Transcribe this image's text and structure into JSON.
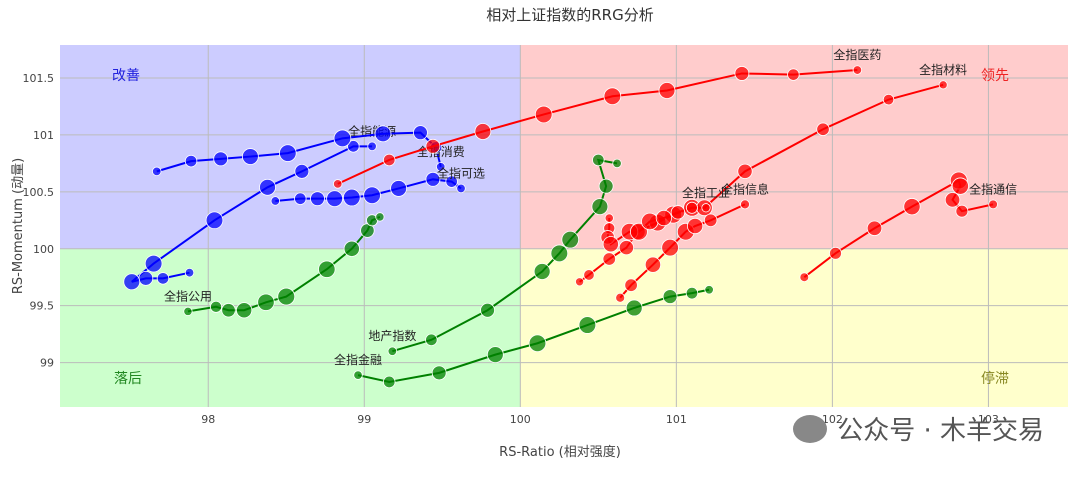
{
  "chart_data": {
    "type": "scatter",
    "title": "相对上证指数的RRG分析",
    "xlabel": "RS-Ratio (相对强度)",
    "ylabel": "RS-Momentum (动量)",
    "xlim": [
      97.05,
      103.51
    ],
    "ylim": [
      98.61,
      101.79
    ],
    "xticks": [
      98,
      99,
      100,
      101,
      102,
      103
    ],
    "yticks": [
      99,
      99.5,
      100,
      100.5,
      101,
      101.5
    ],
    "xtick_labels": [
      "98",
      "99",
      "100",
      "101",
      "102",
      "103"
    ],
    "ytick_labels": [
      "99",
      "99.5",
      "100",
      "100.5",
      "101",
      "101.5"
    ],
    "grid": true,
    "center": [
      100,
      100
    ],
    "quadrants": {
      "improving": {
        "label": "改善",
        "bg": "#ccccff",
        "color": "#2222dd"
      },
      "leading": {
        "label": "领先",
        "bg": "#ffcccc",
        "color": "#ee2222"
      },
      "lagging": {
        "label": "落后",
        "bg": "#ccffcc",
        "color": "#228822"
      },
      "weakening": {
        "label": "停滞",
        "bg": "#ffffcc",
        "color": "#888822"
      }
    },
    "series": [
      {
        "name": "全指能源",
        "color": "#0000ff",
        "x": [
          97.88,
          97.71,
          97.6,
          97.51,
          97.65,
          98.04,
          98.38,
          98.6,
          98.93,
          99.05
        ],
        "y": [
          99.79,
          99.74,
          99.74,
          99.71,
          99.87,
          100.25,
          100.54,
          100.68,
          100.9,
          100.9
        ]
      },
      {
        "name": "全指消费",
        "color": "#0000ff",
        "x": [
          97.67,
          97.89,
          98.08,
          98.27,
          98.51,
          98.86,
          99.12,
          99.36,
          99.46,
          99.49
        ],
        "y": [
          100.68,
          100.77,
          100.79,
          100.81,
          100.84,
          100.97,
          101.01,
          101.02,
          100.89,
          100.72
        ]
      },
      {
        "name": "全指可选",
        "color": "#0000ff",
        "x": [
          98.43,
          98.59,
          98.7,
          98.81,
          98.92,
          99.05,
          99.22,
          99.44,
          99.56,
          99.62
        ],
        "y": [
          100.42,
          100.44,
          100.44,
          100.44,
          100.45,
          100.47,
          100.53,
          100.61,
          100.59,
          100.53
        ]
      },
      {
        "name": "全指医药",
        "color": "#ff0000",
        "x": [
          98.83,
          99.16,
          99.44,
          99.76,
          100.15,
          100.59,
          100.94,
          101.42,
          101.75,
          102.16
        ],
        "y": [
          100.57,
          100.78,
          100.9,
          101.03,
          101.18,
          101.34,
          101.39,
          101.54,
          101.53,
          101.57
        ]
      },
      {
        "name": "全指材料",
        "color": "#ff0000",
        "x": [
          100.38,
          100.44,
          100.57,
          100.68,
          100.75,
          100.88,
          100.98,
          101.1,
          101.18,
          101.44,
          101.94,
          102.36,
          102.71
        ],
        "y": [
          99.71,
          99.77,
          99.91,
          100.01,
          100.15,
          100.23,
          100.3,
          100.36,
          100.36,
          100.68,
          101.05,
          101.31,
          101.44
        ]
      },
      {
        "name": "全指信息",
        "color": "#ff0000",
        "x": [
          100.64,
          100.71,
          100.85,
          100.96,
          101.06,
          101.12,
          101.22,
          101.44
        ],
        "y": [
          99.57,
          99.68,
          99.86,
          100.01,
          100.15,
          100.2,
          100.25,
          100.39
        ]
      },
      {
        "name": "全指工业",
        "color": "#ff0000",
        "x": [
          100.57,
          100.57,
          100.56,
          100.58,
          100.7,
          100.76,
          100.83,
          100.92,
          101.01,
          101.1,
          101.19
        ],
        "y": [
          100.27,
          100.18,
          100.1,
          100.04,
          100.15,
          100.15,
          100.24,
          100.27,
          100.32,
          100.36,
          100.36
        ]
      },
      {
        "name": "全指通信",
        "color": "#ff0000",
        "x": [
          101.82,
          102.02,
          102.27,
          102.51,
          102.81,
          102.82,
          102.77,
          102.83,
          103.03
        ],
        "y": [
          99.75,
          99.96,
          100.18,
          100.37,
          100.6,
          100.55,
          100.43,
          100.33,
          100.39
        ]
      },
      {
        "name": "全指公用",
        "color": "#008000",
        "x": [
          97.87,
          98.05,
          98.13,
          98.23,
          98.37,
          98.5,
          98.76,
          98.92,
          99.02,
          99.05,
          99.1
        ],
        "y": [
          99.45,
          99.49,
          99.46,
          99.46,
          99.53,
          99.58,
          99.82,
          100.0,
          100.16,
          100.25,
          100.28
        ]
      },
      {
        "name": "地产指数",
        "color": "#008000",
        "x": [
          99.18,
          99.43,
          99.79,
          100.14,
          100.25,
          100.32,
          100.51,
          100.55,
          100.5,
          100.62
        ],
        "y": [
          99.1,
          99.2,
          99.46,
          99.8,
          99.96,
          100.08,
          100.37,
          100.55,
          100.78,
          100.75
        ]
      },
      {
        "name": "全指金融",
        "color": "#008000",
        "x": [
          98.96,
          99.16,
          99.48,
          99.84,
          100.11,
          100.43,
          100.73,
          100.96,
          101.1,
          101.21
        ],
        "y": [
          98.89,
          98.83,
          98.91,
          99.07,
          99.17,
          99.33,
          99.48,
          99.58,
          99.61,
          99.64
        ]
      }
    ]
  },
  "watermark": "公众号 · 木羊交易"
}
